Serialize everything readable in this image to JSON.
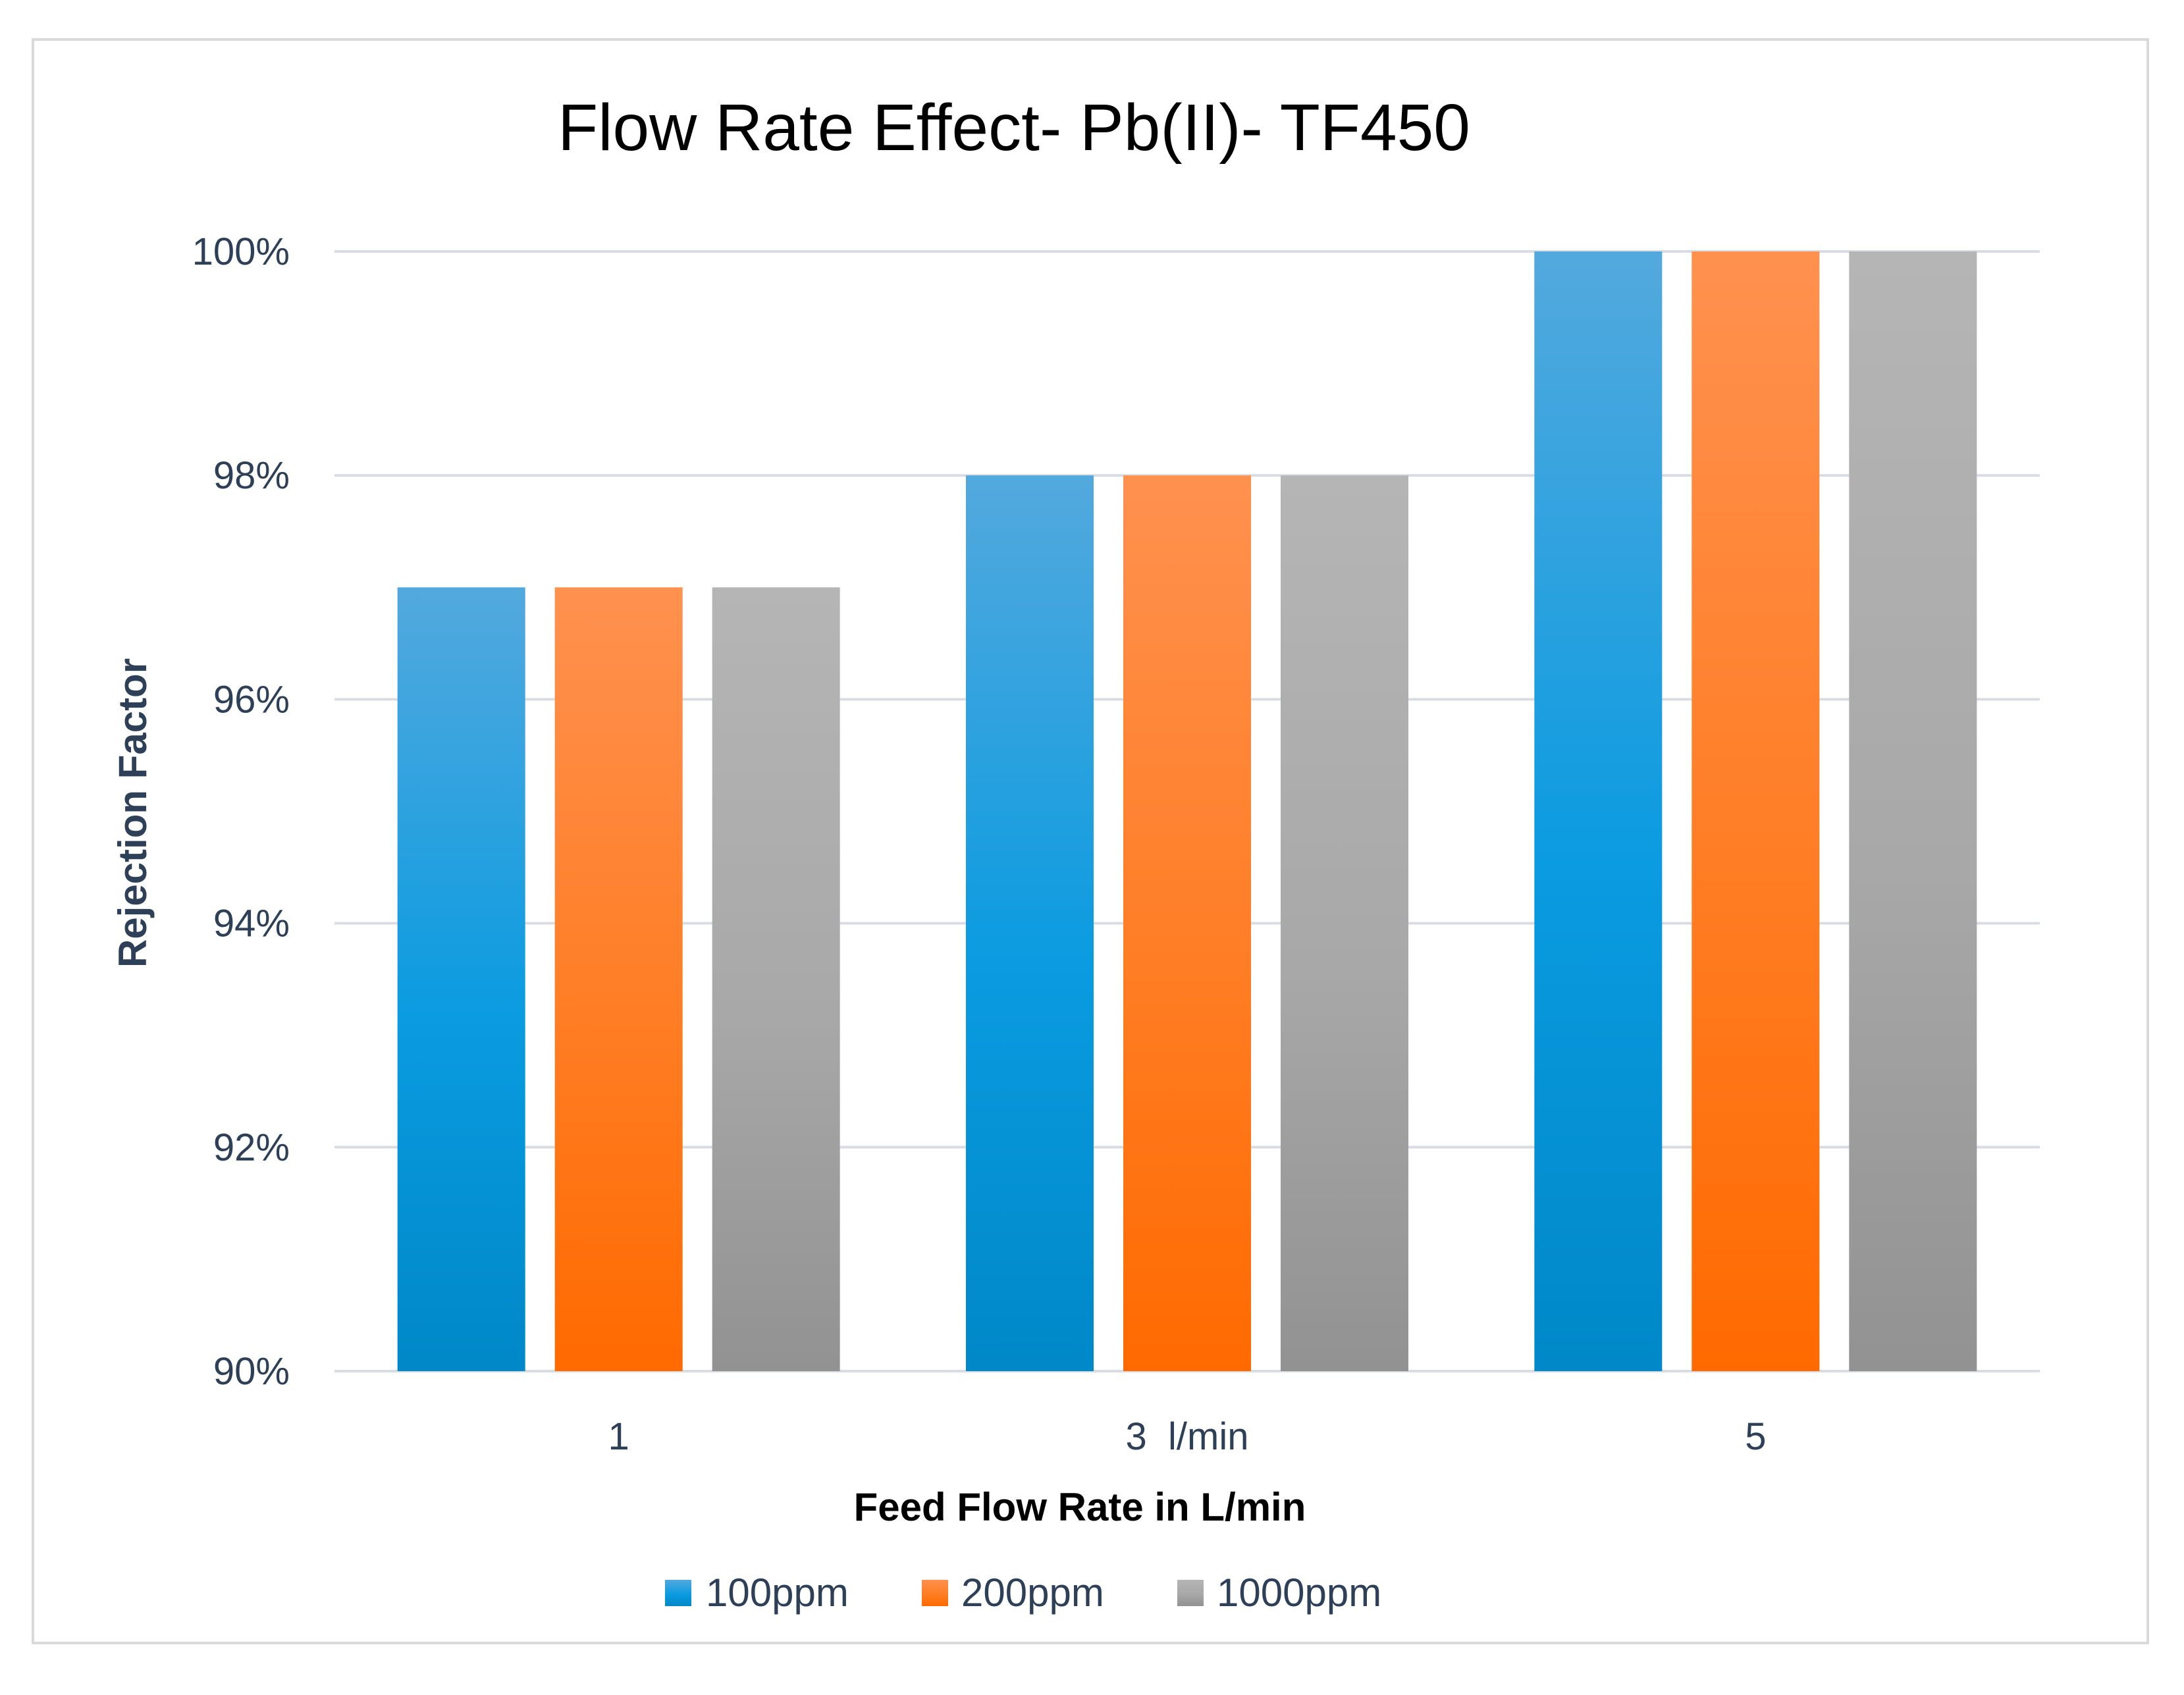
{
  "chart_data": {
    "type": "bar",
    "title": "Flow Rate Effect- Pb(II)- TF450",
    "xlabel": "Feed Flow Rate in L/min",
    "ylabel": "Rejection Factor",
    "categories": [
      "1",
      "3  l/min",
      "5"
    ],
    "series": [
      {
        "name": "100ppm",
        "values": [
          97,
          98,
          100
        ],
        "color_top": "#53a9de",
        "color_mid": "#0a9be0",
        "color_bottom": "#0088c8"
      },
      {
        "name": "200ppm",
        "values": [
          97,
          98,
          100
        ],
        "color_top": "#ff914f",
        "color_mid": "#ff7d24",
        "color_bottom": "#ff6a00"
      },
      {
        "name": "1000ppm",
        "values": [
          97,
          98,
          100
        ],
        "color_top": "#b5b5b5",
        "color_mid": "#a8a8a8",
        "color_bottom": "#929292"
      }
    ],
    "ylim": [
      90,
      100
    ],
    "yticks": [
      90,
      92,
      94,
      96,
      98,
      100
    ],
    "ytick_labels": [
      "90%",
      "92%",
      "94%",
      "96%",
      "98%",
      "100%"
    ],
    "grid": true,
    "legend": "bottom"
  }
}
